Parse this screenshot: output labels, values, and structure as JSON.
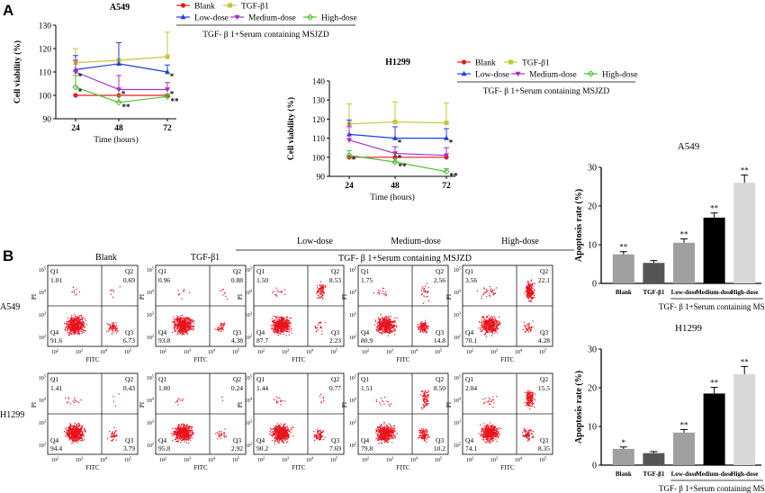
{
  "panels": {
    "a": "A",
    "b": "B"
  },
  "treatment_group_label": "TGF- β 1+Serum containing MSJZD",
  "legend_labels": [
    "Blank",
    "TGF-β1",
    "Low-dose",
    "Medium-dose",
    "High-dose"
  ],
  "colors": {
    "Blank": "#e31a1c",
    "TGF-β1": "#c8c43a",
    "Low-dose": "#1f3ee0",
    "Medium-dose": "#a330c8",
    "High-dose": "#4fbf3a",
    "dots": "#e8111c"
  },
  "flow": {
    "column_labels": [
      "Blank",
      "TGF-β1",
      "Low-dose",
      "Medium-dose",
      "High-dose"
    ],
    "row_labels": [
      "A549",
      "H1299"
    ],
    "x_axis_label": "FITC",
    "y_axis_label": "PI",
    "quadrant_names": [
      "Q1",
      "Q2",
      "Q3",
      "Q4"
    ],
    "tick_base": "10",
    "tick_exponents": [
      "2",
      "3",
      "4",
      "5"
    ],
    "quadrant_values": [
      [
        [
          "1.01",
          "0.69",
          "6.73",
          "91.6"
        ],
        [
          "0.96",
          "0.88",
          "4.38",
          "93.8"
        ],
        [
          "1.50",
          "8.53",
          "2.23",
          "87.7"
        ],
        [
          "1.75",
          "2.56",
          "14.8",
          "80.9"
        ],
        [
          "3.56",
          "22.1",
          "4.28",
          "70.1"
        ]
      ],
      [
        [
          "1.41",
          "0.43",
          "3.79",
          "94.4"
        ],
        [
          "1.00",
          "0.24",
          "2.92",
          "95.8"
        ],
        [
          "1.44",
          "0.77",
          "7.69",
          "90.2"
        ],
        [
          "1.51",
          "8.50",
          "10.2",
          "79.8"
        ],
        [
          "2.04",
          "15.5",
          "8.35",
          "74.1"
        ]
      ]
    ]
  },
  "chart_data": [
    {
      "type": "line",
      "title": "A549",
      "xlabel": "Time (hours)",
      "ylabel": "Cell viability (%)",
      "x": [
        24,
        48,
        72
      ],
      "ylim": [
        90,
        130
      ],
      "yticks": [
        90,
        100,
        110,
        120,
        130
      ],
      "series": [
        {
          "name": "Blank",
          "values": [
            100,
            100,
            100
          ],
          "errors": [
            0,
            0,
            0
          ],
          "marks": [
            "",
            "",
            ""
          ]
        },
        {
          "name": "TGF-β1",
          "values": [
            114,
            115,
            116.5
          ],
          "errors": [
            6,
            7.5,
            10.5
          ],
          "marks": [
            "",
            "",
            ""
          ]
        },
        {
          "name": "Low-dose",
          "values": [
            111,
            113.5,
            110
          ],
          "errors": [
            6,
            9,
            3
          ],
          "marks": [
            "",
            "",
            "*"
          ]
        },
        {
          "name": "Medium-dose",
          "values": [
            110,
            102.5,
            102.5
          ],
          "errors": [
            5,
            6,
            3
          ],
          "marks": [
            "*",
            "*",
            "*"
          ]
        },
        {
          "name": "High-dose",
          "values": [
            103.5,
            97,
            99.5
          ],
          "errors": [
            5,
            3,
            1
          ],
          "marks": [
            "*",
            "**",
            "**"
          ]
        }
      ]
    },
    {
      "type": "line",
      "title": "H1299",
      "xlabel": "Time (hours)",
      "ylabel": "Cell viability (%)",
      "x": [
        24,
        48,
        72
      ],
      "ylim": [
        90,
        140
      ],
      "yticks": [
        90,
        100,
        110,
        120,
        130,
        140
      ],
      "series": [
        {
          "name": "Blank",
          "values": [
            100,
            100,
            100
          ],
          "errors": [
            0,
            0,
            0
          ],
          "marks": [
            "",
            "",
            ""
          ]
        },
        {
          "name": "TGF-β1",
          "values": [
            117.5,
            118.5,
            118
          ],
          "errors": [
            10.5,
            10.5,
            10.5
          ],
          "marks": [
            "",
            "",
            ""
          ]
        },
        {
          "name": "Low-dose",
          "values": [
            112,
            110,
            110
          ],
          "errors": [
            7.5,
            6,
            5
          ],
          "marks": [
            "",
            "*",
            "*"
          ]
        },
        {
          "name": "Medium-dose",
          "values": [
            109,
            102,
            101
          ],
          "errors": [
            7,
            3.5,
            4
          ],
          "marks": [
            "",
            "*",
            ""
          ]
        },
        {
          "name": "High-dose",
          "values": [
            101,
            97.5,
            92.5
          ],
          "errors": [
            2.5,
            2,
            1.5
          ],
          "marks": [
            "*",
            "**",
            "**"
          ]
        }
      ]
    },
    {
      "type": "bar",
      "title": "A549",
      "ylabel": "Apoptosis rate (%)",
      "categories": [
        "Blank",
        "TGF-β1",
        "Low-dose",
        "Medium-dose",
        "High-dose"
      ],
      "values": [
        7.5,
        5.3,
        10.5,
        17,
        26
      ],
      "errors": [
        0.7,
        0.6,
        1,
        1.2,
        2
      ],
      "marks": [
        "**",
        "",
        "**",
        "**",
        "**"
      ],
      "ylim": [
        0,
        30
      ],
      "yticks": [
        0,
        10,
        20,
        30
      ],
      "bar_colors": [
        "#a0a0a0",
        "#555555",
        "#a0a0a0",
        "#000000",
        "#d8d8d8"
      ]
    },
    {
      "type": "bar",
      "title": "H1299",
      "ylabel": "Apoptosis rate (%)",
      "categories": [
        "Blank",
        "TGF-β1",
        "Low-dose",
        "Medium-dose",
        "High-dose"
      ],
      "values": [
        4.2,
        3.1,
        8.4,
        18.5,
        23.5
      ],
      "errors": [
        0.5,
        0.4,
        0.8,
        1.6,
        2
      ],
      "marks": [
        "*",
        "",
        "**",
        "**",
        "**"
      ],
      "ylim": [
        0,
        30
      ],
      "yticks": [
        0,
        10,
        20,
        30
      ],
      "bar_colors": [
        "#a0a0a0",
        "#555555",
        "#a0a0a0",
        "#000000",
        "#d8d8d8"
      ]
    }
  ]
}
